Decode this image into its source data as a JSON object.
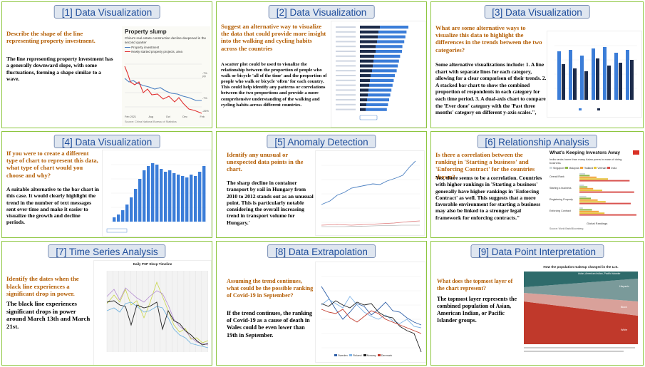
{
  "panels": [
    {
      "header": "[1] Data Visualization",
      "question": "Describe the shape of the line representing property investment.",
      "answer": "The line representing property investment has a generally downward slope, with some fluctuations, forming a shape similar to a wave.",
      "chart": {
        "title": "Property slump",
        "subtitle": "China's real estate construction decline deepened in the second quarter",
        "legend": [
          "Property investment",
          "Newly started property projects, area"
        ],
        "x_ticks": [
          "Feb 2021",
          "Aug",
          "Oct",
          "Dec",
          "Feb"
        ],
        "end_labels": [
          "-7% y/y",
          "-7%",
          "-26%"
        ],
        "source": "Source: China National Bureau of Statistics"
      }
    },
    {
      "header": "[2] Data Visualization",
      "question": "Suggest an alternative way to visualize the data that could provide more insight into the walking and cycling habits across the countries",
      "answer": "A scatter plot could be used to visualize the relationship between the proportion of people who walk or bicycle 'all of the time' and the proportion of people who walk or bicycle 'often' for each country. This could help identify any patterns or correlations between the two proportions and provide a more comprehensive understanding of the walking and cycling habits across different countries."
    },
    {
      "header": "[3] Data Visualization",
      "question": "What are some alternative ways to visualize this data to highlight the differences in the trends between the two categories?",
      "answer": "Some alternative visualizations include: 1. A line chart with separate lines for each category, allowing for a clear comparison of their trends. 2. A stacked bar chart to show the combined proportion of respondents in each category for each time period. 3. A dual-axis chart to compare the 'Ever done' category with the 'Past three months' category on different y-axis scales.\","
    },
    {
      "header": "[4] Data Visualization",
      "question": "If you were to create a different type of chart to represent this data, what type of chart would you choose and why?",
      "answer": "A suitable alternative to the bar chart in this case. It would clearly highlight the trend in the number of text messages sent over time and make it easier to visualize the growth and decline periods."
    },
    {
      "header": "[5] Anomaly Detection",
      "question": "Identify any unusual or unexpected data points in the chart.",
      "answer": "The sharp decline in container transport by rail in Hungary from 2010 to 2012 stands out as an unusual point. This is particularly notable considering the overall increasing trend in transport volume for Hungary.'"
    },
    {
      "header": "[6] Relationship Analysis",
      "question": "Is there a correlation between the ranking in 'Starting a business' and 'Enforcing Contract' for the countries shown?",
      "answer": "Yes, there seems to be a correlation. Countries with higher rankings in 'Starting a business' generally have higher rankings in 'Enforcing Contract' as well. This suggests that a more favorable environment for starting a business may also be linked to a stronger legal framework for enforcing contracts.\"",
      "chart": {
        "title": "What's Keeping Investors Away",
        "subtitle": "India ranks lower than many Asian peers in ease of doing business",
        "legend": [
          "Singapore",
          "Malaysia",
          "Thailand",
          "Vietnam",
          "India"
        ],
        "categories": [
          "Overall Rank",
          "Starting a business",
          "Registering Property",
          "Enforcing Contract"
        ],
        "xlabel": "Global Rankings",
        "source": "Source: World Bank/Bloomberg"
      }
    },
    {
      "header": "[7] Time Series Analysis",
      "question": "Identify the dates when the black line experiences a significant drop in power.",
      "answer": "The black line experiences significant drops in power around March 13th and March 21st.",
      "chart": {
        "title": "Daily PSP Sleep Timeline"
      }
    },
    {
      "header": "[8] Data Extrapolation",
      "question": "Assuming the trend continues, what could be the possible ranking of Covid-19 in September?",
      "answer": "If the trend continues, the ranking of Covid-19 as a cause of death in Wales could be even lower than 19th in September.",
      "chart": {
        "legend": [
          "Sweden",
          "Finland",
          "Norway",
          "Denmark"
        ]
      }
    },
    {
      "header": "[9] Data Point Interpretation",
      "question": "What does the topmost layer of the chart represent?",
      "answer": "The topmost layer represents the combined population of Asian, American Indian, or Pacific Islander groups.",
      "chart": {
        "title": "How the population makeup changed in the U.S.",
        "layer_labels": [
          "Asian, American Indian, Pacific Islander",
          "Hispanic",
          "Black",
          "White"
        ]
      }
    }
  ],
  "colors": {
    "border": "#8dc63f",
    "header_text": "#1f4e9c",
    "question": "#b45f06"
  }
}
